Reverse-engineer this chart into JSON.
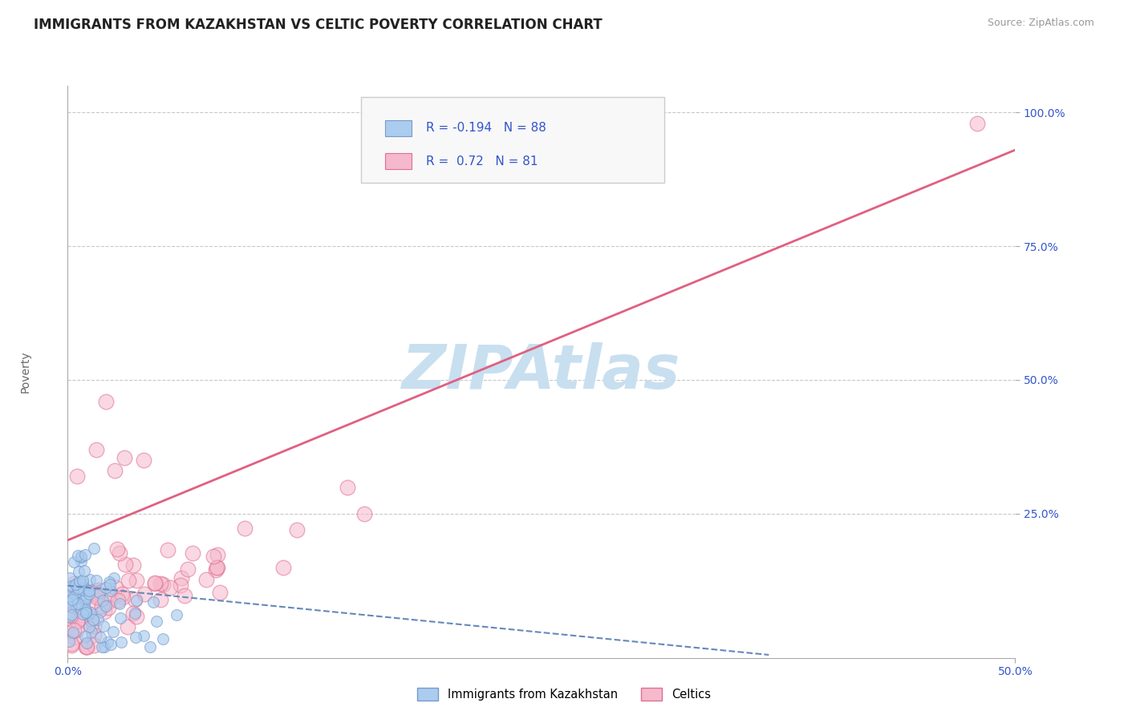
{
  "title": "IMMIGRANTS FROM KAZAKHSTAN VS CELTIC POVERTY CORRELATION CHART",
  "source_text": "Source: ZipAtlas.com",
  "ylabel": "Poverty",
  "xlim": [
    0.0,
    0.5
  ],
  "ylim": [
    -0.02,
    1.05
  ],
  "xtick_labels": [
    "0.0%",
    "50.0%"
  ],
  "xtick_positions": [
    0.0,
    0.5
  ],
  "ytick_labels": [
    "100.0%",
    "75.0%",
    "50.0%",
    "25.0%"
  ],
  "ytick_positions": [
    1.0,
    0.75,
    0.5,
    0.25
  ],
  "grid_color": "#c8c8c8",
  "background_color": "#ffffff",
  "watermark_text": "ZIPAtlas",
  "watermark_color": "#c8dff0",
  "series": [
    {
      "name": "Immigrants from Kazakhstan",
      "R": -0.194,
      "N": 88,
      "marker_fill": "#aaccee",
      "marker_edge": "#7799cc",
      "line_color": "#6688bb",
      "line_style": "--",
      "line_slope": -0.35,
      "line_intercept": 0.115,
      "line_xmax": 0.37
    },
    {
      "name": "Celtics",
      "R": 0.72,
      "N": 81,
      "marker_fill": "#f5b8cc",
      "marker_edge": "#e07090",
      "line_color": "#e06080",
      "line_style": "-",
      "line_slope": 1.46,
      "line_intercept": 0.2,
      "line_xmax": 0.5
    }
  ],
  "legend_fill_blue": "#aaccee",
  "legend_fill_pink": "#f5b8cc",
  "legend_text_color": "#3355cc",
  "title_fontsize": 12,
  "source_fontsize": 9,
  "tick_fontsize": 10,
  "ylabel_fontsize": 10
}
